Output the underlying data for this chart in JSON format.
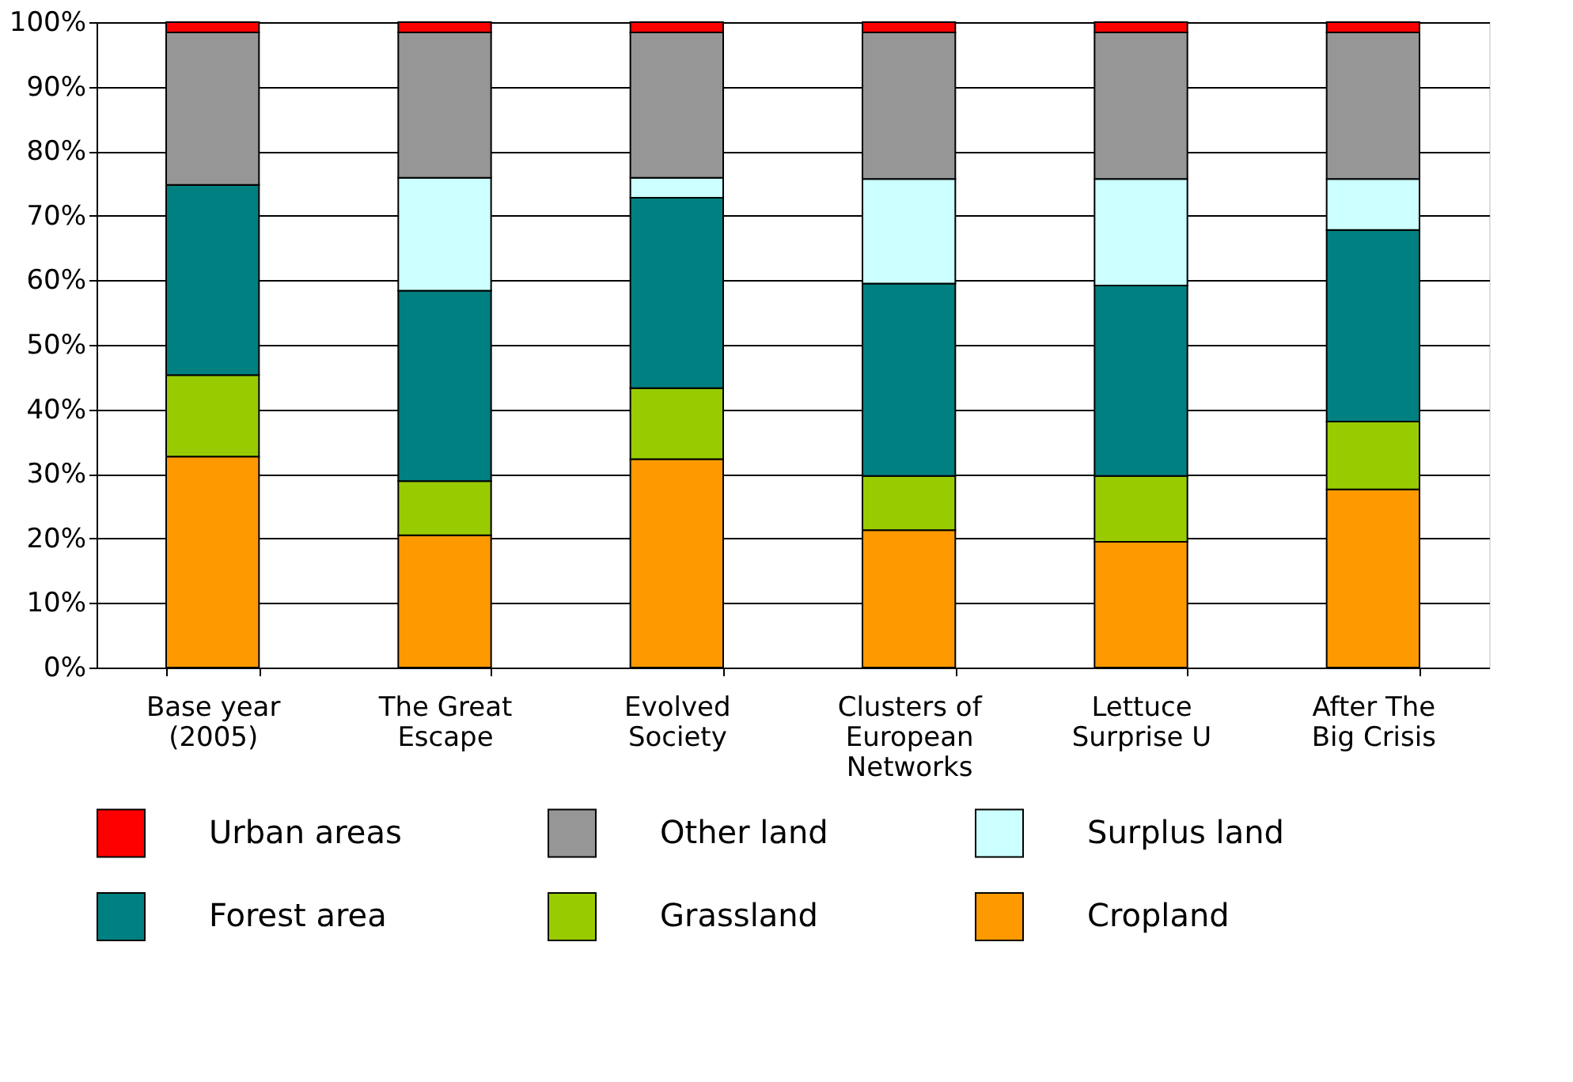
{
  "chart_data": {
    "type": "bar",
    "stacked": true,
    "categories": [
      "Base year (2005)",
      "The Great Escape",
      "Evolved Society",
      "Clusters of European Networks",
      "Lettuce Surprise U",
      "After The Big Crisis"
    ],
    "series": [
      {
        "name": "Cropland",
        "color": "#ff9900",
        "values": [
          32.7,
          20.5,
          32.3,
          21.3,
          19.5,
          27.6
        ]
      },
      {
        "name": "Grassland",
        "color": "#99cc00",
        "values": [
          12.6,
          8.4,
          11.0,
          8.4,
          10.2,
          10.5
        ]
      },
      {
        "name": "Forest area",
        "color": "#008080",
        "values": [
          29.5,
          29.5,
          29.5,
          29.8,
          29.5,
          29.7
        ]
      },
      {
        "name": "Surplus land",
        "color": "#ccffff",
        "values": [
          0,
          17.5,
          3.1,
          16.2,
          16.5,
          7.9
        ]
      },
      {
        "name": "Other land",
        "color": "#969696",
        "values": [
          23.6,
          22.5,
          22.5,
          22.7,
          22.7,
          22.7
        ]
      },
      {
        "name": "Urban areas",
        "color": "#ff0000",
        "values": [
          1.6,
          1.6,
          1.6,
          1.6,
          1.6,
          1.6
        ]
      }
    ],
    "ylim": [
      0,
      100
    ],
    "yticks": [
      {
        "value": 0,
        "label": "0%"
      },
      {
        "value": 10,
        "label": "10%"
      },
      {
        "value": 20,
        "label": "20%"
      },
      {
        "value": 30,
        "label": "30%"
      },
      {
        "value": 40,
        "label": "40%"
      },
      {
        "value": 50,
        "label": "50%"
      },
      {
        "value": 60,
        "label": "60%"
      },
      {
        "value": 70,
        "label": "70%"
      },
      {
        "value": 80,
        "label": "80%"
      },
      {
        "value": 90,
        "label": "90%"
      },
      {
        "value": 100,
        "label": "100%"
      }
    ],
    "grid": "y",
    "legend": "bottom"
  }
}
